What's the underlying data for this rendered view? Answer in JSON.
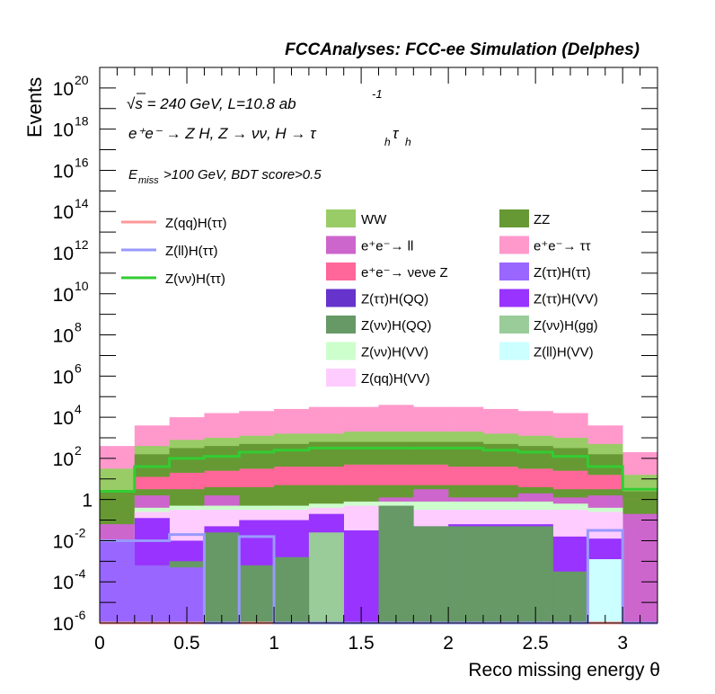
{
  "chart_data": {
    "type": "bar",
    "title": "FCCAnalyses: FCC-ee Simulation (Delphes)",
    "xlabel": "Reco missing energy θ",
    "ylabel": "Events",
    "xlim": [
      0,
      3.2
    ],
    "ylim_exponent": [
      -6,
      21
    ],
    "yscale": "log",
    "x_ticks": [
      {
        "v": 0,
        "label": "0"
      },
      {
        "v": 0.5,
        "label": "0.5"
      },
      {
        "v": 1,
        "label": "1"
      },
      {
        "v": 1.5,
        "label": "1.5"
      },
      {
        "v": 2,
        "label": "2"
      },
      {
        "v": 2.5,
        "label": "2.5"
      },
      {
        "v": 3,
        "label": "3"
      }
    ],
    "y_ticks": [
      {
        "e": -6,
        "base": "10",
        "exp": "-6"
      },
      {
        "e": -4,
        "base": "10",
        "exp": "-4"
      },
      {
        "e": -2,
        "base": "10",
        "exp": "-2"
      },
      {
        "e": 0,
        "base": "1",
        "exp": ""
      },
      {
        "e": 2,
        "base": "10",
        "exp": "2"
      },
      {
        "e": 4,
        "base": "10",
        "exp": "4"
      },
      {
        "e": 6,
        "base": "10",
        "exp": "6"
      },
      {
        "e": 8,
        "base": "10",
        "exp": "8"
      },
      {
        "e": 10,
        "base": "10",
        "exp": "10"
      },
      {
        "e": 12,
        "base": "10",
        "exp": "12"
      },
      {
        "e": 14,
        "base": "10",
        "exp": "14"
      },
      {
        "e": 16,
        "base": "10",
        "exp": "16"
      },
      {
        "e": 18,
        "base": "10",
        "exp": "18"
      },
      {
        "e": 20,
        "base": "10",
        "exp": "20"
      }
    ],
    "bin_edges": [
      0,
      0.2,
      0.4,
      0.6,
      0.8,
      1.0,
      1.2,
      1.4,
      1.6,
      1.8,
      2.0,
      2.2,
      2.4,
      2.6,
      2.8,
      3.0,
      3.2
    ],
    "stack_log10": {
      "description": "log10 of cumulative stacked height at top of each component, per bin",
      "components": [
        {
          "name": "Z(ττ)H(ττ)",
          "color": "#9966ff",
          "tops": [
            -2,
            -3.2,
            -3.3,
            -7,
            -7,
            -7,
            -7,
            -7,
            -7,
            -7,
            -7,
            -7,
            -7,
            -7,
            -7,
            -7
          ]
        },
        {
          "name": "Z(ll)H(VV)",
          "color": "#ccffff",
          "tops": [
            -7,
            -7,
            -7,
            -7,
            -7,
            -7,
            -7,
            -7,
            -7,
            -7,
            -7,
            -7,
            -7,
            -7,
            -2.9,
            -7
          ]
        },
        {
          "name": "Z(νν)H(QQ)",
          "color": "#669966",
          "tops": [
            -7,
            -3.2,
            -3.0,
            -1.6,
            -3.2,
            -2.8,
            -7,
            -7,
            -0.3,
            -1.3,
            -1.3,
            -1.3,
            -1.3,
            -3.5,
            -7,
            -7
          ]
        },
        {
          "name": "Z(νν)H(gg)",
          "color": "#99cc99",
          "tops": [
            -7,
            -7,
            -7,
            -7,
            -7,
            -7,
            -1.6,
            -7,
            -7,
            -7,
            -7,
            -7,
            -7,
            -7,
            -7,
            -7
          ]
        },
        {
          "name": "Z(ττ)H(QQ)",
          "color": "#6633cc",
          "tops": [
            -7,
            -7,
            -7,
            -7,
            -7,
            -7,
            -7,
            -7,
            -7,
            -5.6,
            -7,
            -7,
            -7,
            -7,
            -7,
            -7
          ]
        },
        {
          "name": "Z(ττ)H(VV)",
          "color": "#9933ff",
          "tops": [
            -7,
            -0.9,
            -2.0,
            -1.3,
            -1.0,
            -1.0,
            -0.7,
            -1.5,
            -1.3,
            -1.3,
            -1.2,
            -1.2,
            -1.2,
            -1.8,
            -1.9,
            -7
          ]
        },
        {
          "name": "Z(qq)H(VV)",
          "color": "#ffccff",
          "tops": [
            -7,
            -0.6,
            -0.5,
            -0.5,
            -0.5,
            -0.5,
            -0.4,
            -0.3,
            -0.3,
            -0.5,
            -0.5,
            -0.5,
            -0.5,
            -0.5,
            -0.6,
            -7
          ]
        },
        {
          "name": "Z(νν)H(VV)",
          "color": "#ccffcc",
          "tops": [
            -7,
            -0.4,
            -0.3,
            -0.3,
            -0.3,
            -0.3,
            -0.2,
            -0.1,
            -0.1,
            -0.1,
            -0.1,
            -0.1,
            -0.1,
            -0.2,
            -0.4,
            -7
          ]
        },
        {
          "name": "e⁺e⁻ → ll",
          "color": "#cc66cc",
          "tops": [
            -1.2,
            0.2,
            -0.4,
            0.2,
            -0.5,
            -0.3,
            -0.3,
            -0.1,
            0.1,
            0.5,
            0.1,
            0.1,
            0.3,
            0.1,
            0.2,
            -0.7
          ]
        },
        {
          "name": "ZZ",
          "color": "#669933",
          "tops": [
            0.2,
            0.5,
            0.5,
            0.6,
            0.6,
            0.7,
            0.7,
            0.7,
            0.7,
            0.7,
            0.7,
            0.7,
            0.6,
            0.5,
            0.5,
            0
          ]
        },
        {
          "name": "e⁺e⁻ → νeνe Z",
          "color": "#ff6699",
          "tops": [
            0.2,
            1.1,
            1.3,
            1.4,
            1.5,
            1.6,
            1.6,
            1.7,
            1.7,
            1.7,
            1.6,
            1.6,
            1.5,
            1.4,
            1.2,
            0
          ]
        },
        {
          "name": "WW",
          "color": "#99cc66",
          "tops": [
            1.5,
            2.6,
            2.9,
            3.0,
            3.1,
            3.2,
            3.2,
            3.3,
            3.3,
            3.3,
            3.3,
            3.2,
            3.1,
            3.0,
            2.7,
            1.2
          ]
        },
        {
          "name": "e⁺e⁻ → ττ",
          "color": "#ff99cc",
          "tops": [
            2.6,
            3.6,
            4.0,
            4.2,
            4.3,
            4.4,
            4.5,
            4.5,
            4.6,
            4.5,
            4.5,
            4.4,
            4.3,
            4.2,
            3.6,
            2.3
          ]
        }
      ],
      "zz_band_tops": [
        0.4,
        2.2,
        2.5,
        2.6,
        2.7,
        2.7,
        2.8,
        2.8,
        2.8,
        2.8,
        2.8,
        2.7,
        2.6,
        2.5,
        2.2,
        0.4
      ]
    },
    "signal_lines": [
      {
        "name": "Z(qq)H(ττ)",
        "color": "#ff9999",
        "log10_values": [
          -7,
          -7,
          -7,
          -7,
          -7,
          -7,
          -7,
          -7,
          -7,
          -7,
          -7,
          -7,
          -7,
          -7,
          -7,
          -7
        ]
      },
      {
        "name": "Z(ll)H(ττ)",
        "color": "#9999ff",
        "log10_values": [
          -2.0,
          -2.0,
          -1.7,
          -7,
          -1.8,
          -7,
          -7,
          -7,
          -7,
          -7,
          -7,
          -7,
          -7,
          -7,
          -1.5,
          -7
        ]
      },
      {
        "name": "Z(νν)H(ττ)",
        "color": "#33cc33",
        "log10_values": [
          0.4,
          1.6,
          2.0,
          2.1,
          2.3,
          2.4,
          2.5,
          2.5,
          2.5,
          2.5,
          2.5,
          2.4,
          2.3,
          2.1,
          1.6,
          0.5
        ]
      }
    ]
  },
  "annotations": {
    "line1_sqrt": "√",
    "line1_s": "s",
    "line1_rest": " = 240 GeV, L=10.8 ab",
    "line1_sup": "-1",
    "line2": "e⁺e⁻ → Z H, Z → νν, H → τ",
    "line2_sub1": "h",
    "line2_tau": "τ",
    "line2_sub2": "h",
    "line3_E": "E",
    "line3_sub": "miss",
    "line3_rest": ">100 GeV, BDT score>0.5"
  },
  "legend": {
    "lines": [
      {
        "label": "Z(qq)H(ττ)",
        "color": "#ff9999"
      },
      {
        "label": "Z(ll)H(ττ)",
        "color": "#9999ff"
      },
      {
        "label": "Z(νν)H(ττ)",
        "color": "#33cc33"
      }
    ],
    "boxes_col1": [
      {
        "label": "WW",
        "color": "#99cc66"
      },
      {
        "label": "e⁺e⁻→ ll",
        "color": "#cc66cc"
      },
      {
        "label": "e⁺e⁻→ νeνe Z",
        "color": "#ff6699"
      },
      {
        "label": "Z(ττ)H(QQ)",
        "color": "#6633cc"
      },
      {
        "label": "Z(νν)H(QQ)",
        "color": "#669966"
      },
      {
        "label": "Z(νν)H(VV)",
        "color": "#ccffcc"
      },
      {
        "label": "Z(qq)H(VV)",
        "color": "#ffccff"
      }
    ],
    "boxes_col2": [
      {
        "label": "ZZ",
        "color": "#669933"
      },
      {
        "label": "e⁺e⁻→ ττ",
        "color": "#ff99cc"
      },
      {
        "label": "Z(ττ)H(ττ)",
        "color": "#9966ff"
      },
      {
        "label": "Z(ττ)H(VV)",
        "color": "#9933ff"
      },
      {
        "label": "Z(νν)H(gg)",
        "color": "#99cc99"
      },
      {
        "label": "Z(ll)H(VV)",
        "color": "#ccffff"
      }
    ]
  }
}
